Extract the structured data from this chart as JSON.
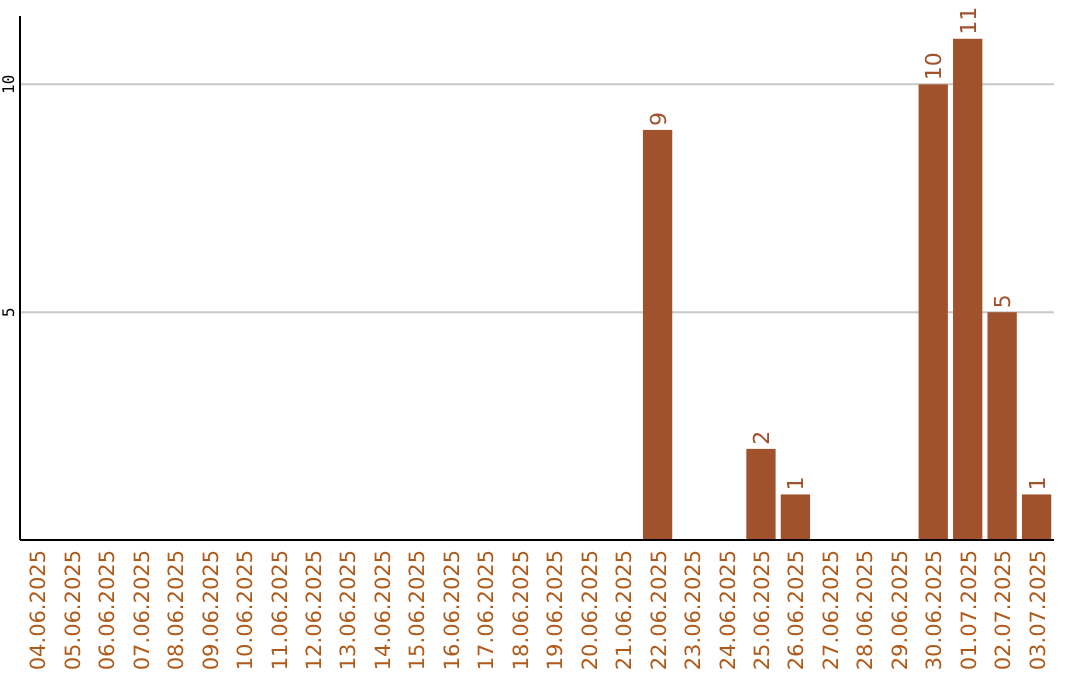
{
  "chart_data": {
    "type": "bar",
    "categories": [
      "04.06.2025",
      "05.06.2025",
      "06.06.2025",
      "07.06.2025",
      "08.06.2025",
      "09.06.2025",
      "10.06.2025",
      "11.06.2025",
      "12.06.2025",
      "13.06.2025",
      "14.06.2025",
      "15.06.2025",
      "16.06.2025",
      "17.06.2025",
      "18.06.2025",
      "19.06.2025",
      "20.06.2025",
      "21.06.2025",
      "22.06.2025",
      "23.06.2025",
      "24.06.2025",
      "25.06.2025",
      "26.06.2025",
      "27.06.2025",
      "28.06.2025",
      "29.06.2025",
      "30.06.2025",
      "01.07.2025",
      "02.07.2025",
      "03.07.2025"
    ],
    "values": [
      0,
      0,
      0,
      0,
      0,
      0,
      0,
      0,
      0,
      0,
      0,
      0,
      0,
      0,
      0,
      0,
      0,
      0,
      9,
      0,
      0,
      2,
      1,
      0,
      0,
      0,
      10,
      11,
      5,
      1
    ],
    "value_labels": [
      null,
      null,
      null,
      null,
      null,
      null,
      null,
      null,
      null,
      null,
      null,
      null,
      null,
      null,
      null,
      null,
      null,
      null,
      "9",
      null,
      null,
      "2",
      "1",
      null,
      null,
      null,
      "10",
      "11",
      "5",
      "1"
    ],
    "color": "#a0522d",
    "ylim": [
      0,
      11.5
    ],
    "yticks": [
      5,
      10
    ],
    "grid": "y"
  }
}
